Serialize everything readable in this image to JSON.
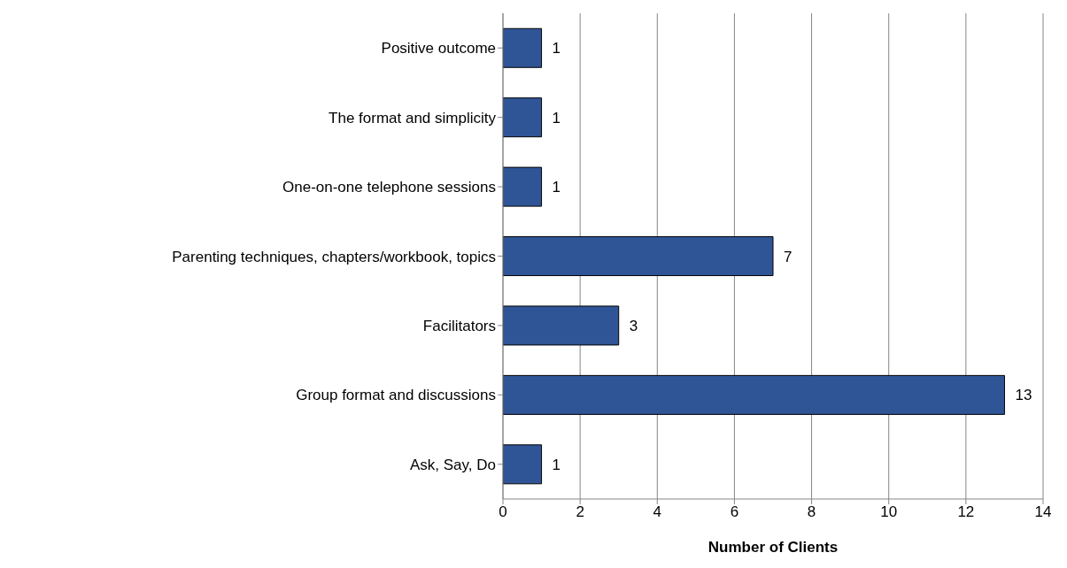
{
  "chart_data": {
    "type": "bar",
    "orientation": "horizontal",
    "xlabel": "Number of Clients",
    "categories": [
      "Positive outcome",
      "The format and simplicity",
      "One-on-one telephone sessions",
      "Parenting techniques, chapters/workbook, topics",
      "Facilitators",
      "Group format and discussions",
      "Ask, Say, Do"
    ],
    "values": [
      1,
      1,
      1,
      7,
      3,
      13,
      1
    ],
    "color": "#2f5597",
    "xlim": [
      0,
      14
    ],
    "xticks": [
      0,
      2,
      4,
      6,
      8,
      10,
      12,
      14
    ],
    "grid": "x",
    "data_labels": true
  }
}
